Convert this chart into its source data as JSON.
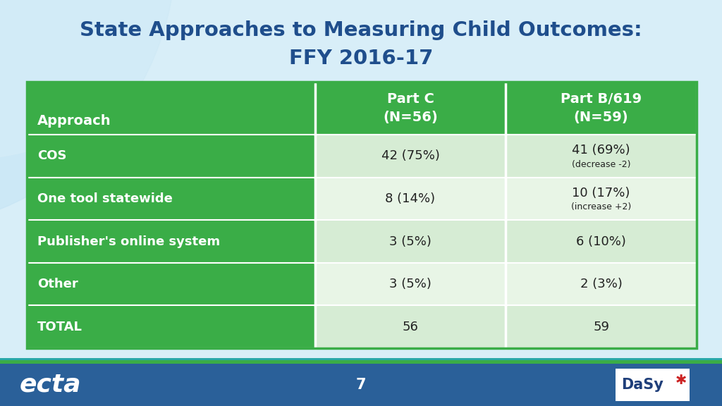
{
  "title_line1": "State Approaches to Measuring Child Outcomes:",
  "title_line2": "FFY 2016-17",
  "title_color": "#1F4E8C",
  "background_color": "#D8EEF8",
  "footer_color": "#2A6099",
  "header_bg": "#3AAD47",
  "header_text_color": "#FFFFFF",
  "row_label_bg": "#3AAD47",
  "row_label_text_color": "#FFFFFF",
  "data_cell_bg_even": "#D6ECD4",
  "data_cell_bg_odd": "#E8F5E6",
  "col_headers": [
    "Approach",
    "Part C\n(N=56)",
    "Part B/619\n(N=59)"
  ],
  "rows": [
    {
      "label": "COS",
      "part_c": "42 (75%)",
      "part_b": "41 (69%)\n(decrease -2)"
    },
    {
      "label": "One tool statewide",
      "part_c": "8 (14%)",
      "part_b": "10 (17%)\n(increase +2)"
    },
    {
      "label": "Publisher's online system",
      "part_c": "3 (5%)",
      "part_b": "6 (10%)"
    },
    {
      "label": "Other",
      "part_c": "3 (5%)",
      "part_b": "2 (3%)"
    },
    {
      "label": "TOTAL",
      "part_c": "56",
      "part_b": "59"
    }
  ],
  "footer_text": "7",
  "ecta_color": "#FFFFFF",
  "divider_color": "#FFFFFF",
  "table_border_color": "#3AAD47",
  "green_stripe_color": "#3AAD47",
  "teal_stripe_color": "#29A8A8",
  "footer_bar_color": "#2A6099"
}
